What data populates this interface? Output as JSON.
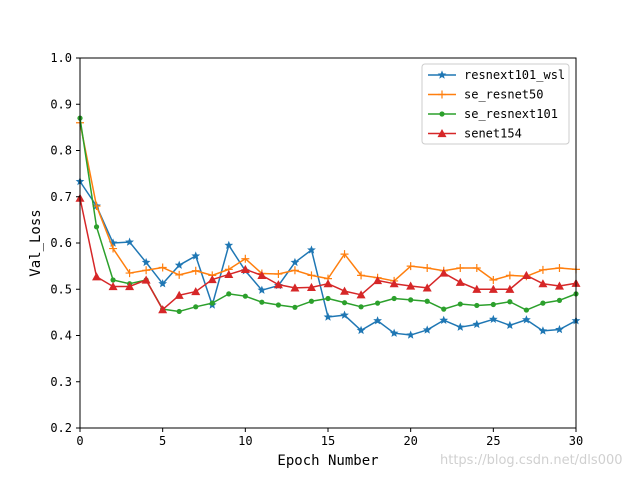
{
  "chart_data": {
    "type": "line",
    "title": "",
    "xlabel": "Epoch Number",
    "ylabel": "Val_Loss",
    "xlim": [
      0,
      30
    ],
    "ylim": [
      0.2,
      1.0
    ],
    "xticks": [
      "0",
      "5",
      "10",
      "15",
      "20",
      "25",
      "30"
    ],
    "yticks": [
      "0.2",
      "0.3",
      "0.4",
      "0.5",
      "0.6",
      "0.7",
      "0.8",
      "0.9",
      "1.0"
    ],
    "grid": false,
    "legend_position": "top-right",
    "x": [
      0,
      1,
      2,
      3,
      4,
      5,
      6,
      7,
      8,
      9,
      10,
      11,
      12,
      13,
      14,
      15,
      16,
      17,
      18,
      19,
      20,
      21,
      22,
      23,
      24,
      25,
      26,
      27,
      28,
      29,
      30
    ],
    "series": [
      {
        "name": "resnext101_wsl",
        "color": "#1f77b4",
        "marker": "star",
        "values": [
          0.733,
          0.68,
          0.6,
          0.602,
          0.558,
          0.512,
          0.552,
          0.572,
          0.466,
          0.595,
          0.54,
          0.498,
          0.508,
          0.558,
          0.585,
          0.44,
          0.444,
          0.411,
          0.432,
          0.405,
          0.401,
          0.412,
          0.433,
          0.418,
          0.424,
          0.435,
          0.422,
          0.434,
          0.41,
          0.413,
          0.432
        ]
      },
      {
        "name": "se_resnet50",
        "color": "#ff7f0e",
        "marker": "plus",
        "values": [
          0.86,
          0.68,
          0.588,
          0.535,
          0.541,
          0.547,
          0.531,
          0.54,
          0.53,
          0.543,
          0.566,
          0.534,
          0.533,
          0.541,
          0.53,
          0.523,
          0.576,
          0.53,
          0.525,
          0.518,
          0.55,
          0.546,
          0.54,
          0.546,
          0.546,
          0.52,
          0.53,
          0.528,
          0.542,
          0.546,
          0.543
        ]
      },
      {
        "name": "se_resnext101",
        "color": "#2ca02c",
        "marker": "circle",
        "values": [
          0.87,
          0.635,
          0.52,
          0.512,
          0.52,
          0.457,
          0.452,
          0.462,
          0.47,
          0.49,
          0.485,
          0.472,
          0.466,
          0.461,
          0.474,
          0.48,
          0.471,
          0.462,
          0.47,
          0.48,
          0.477,
          0.474,
          0.457,
          0.468,
          0.465,
          0.467,
          0.473,
          0.455,
          0.47,
          0.476,
          0.49
        ]
      },
      {
        "name": "senet154",
        "color": "#d62728",
        "marker": "triangle",
        "values": [
          0.697,
          0.527,
          0.506,
          0.506,
          0.52,
          0.456,
          0.487,
          0.495,
          0.521,
          0.532,
          0.543,
          0.53,
          0.51,
          0.503,
          0.504,
          0.512,
          0.496,
          0.488,
          0.519,
          0.512,
          0.507,
          0.503,
          0.535,
          0.515,
          0.5,
          0.5,
          0.5,
          0.53,
          0.512,
          0.507,
          0.513
        ]
      }
    ]
  },
  "watermark": "https://blog.csdn.net/dls000"
}
